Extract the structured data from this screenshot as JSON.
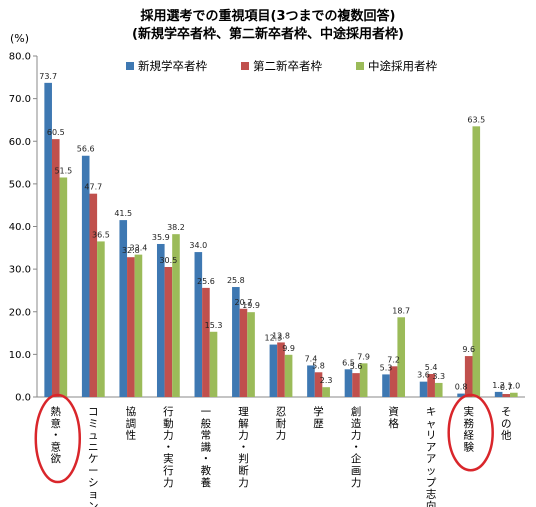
{
  "chart_data": {
    "type": "bar",
    "title_line1": "採用選考での重視項目(3つまでの複数回答)",
    "title_line2": "(新規学卒者枠、第二新卒者枠、中途採用者枠)",
    "unit_label": "(%)",
    "ylim": [
      0,
      80
    ],
    "yticks": [
      "0.0",
      "10.0",
      "20.0",
      "30.0",
      "40.0",
      "50.0",
      "60.0",
      "70.0",
      "80.0"
    ],
    "grid": false,
    "legend_position": "top-right",
    "categories": [
      "熱意・意欲",
      "コミュニケーション力",
      "協調性",
      "行動力・実行力",
      "一般常識・教養",
      "理解力・判断力",
      "忍耐力",
      "学歴",
      "創造力・企画力",
      "資格",
      "キャリアアップ志向",
      "実務経験",
      "その他"
    ],
    "series": [
      {
        "name": "新規学卒者枠",
        "color": "#3E78B2",
        "values": [
          73.7,
          56.6,
          41.5,
          35.9,
          34.0,
          25.8,
          12.3,
          7.4,
          6.5,
          5.3,
          3.6,
          0.8,
          1.2
        ],
        "labels": [
          "73.7",
          "56.6",
          "41.5",
          "35.9",
          "34.0",
          "25.8",
          "12.3",
          "7.4",
          "6.5",
          "5.3",
          "3.6",
          "0.8",
          "1.2"
        ]
      },
      {
        "name": "第二新卒者枠",
        "color": "#C0504D",
        "values": [
          60.5,
          47.7,
          32.8,
          30.5,
          25.6,
          20.7,
          12.8,
          5.8,
          5.6,
          7.2,
          5.4,
          9.6,
          0.7
        ],
        "labels": [
          "60.5",
          "47.7",
          "32.8",
          "30.5",
          "25.6",
          "20.7",
          "12.8",
          "5.8",
          "5.6",
          "7.2",
          "5.4",
          "9.6",
          "0.7"
        ]
      },
      {
        "name": "中途採用者枠",
        "color": "#9BBB59",
        "values": [
          51.5,
          36.5,
          33.4,
          38.2,
          15.3,
          19.9,
          9.9,
          2.3,
          7.9,
          18.7,
          3.3,
          63.5,
          1.0
        ],
        "labels": [
          "51.5",
          "36.5",
          "33.4",
          "38.2",
          "15.3",
          "19.9",
          "9.9",
          "2.3",
          "7.9",
          "18.7",
          "3.3",
          "63.5",
          "1.0"
        ]
      }
    ],
    "highlighted_categories": [
      "熱意・意欲",
      "実務経験"
    ],
    "highlight_color": "#D9262B"
  }
}
